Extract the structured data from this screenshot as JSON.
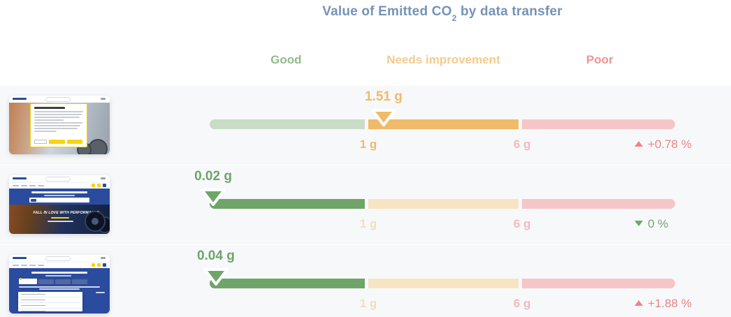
{
  "title": {
    "prefix": "Value of Emitted CO",
    "subscript": "2",
    "suffix": " by data transfer"
  },
  "zone_labels": {
    "good": "Good",
    "needs_improvement": "Needs improvement",
    "poor": "Poor"
  },
  "ticks": {
    "one": "1 g",
    "six": "6 g"
  },
  "thumbnails": {
    "page2_hero_text": "FALL IN LOVE WITH PERFORMANCE"
  },
  "colors": {
    "title_blue": "#7493b7",
    "good_green": "#6fa568",
    "good_green_faded": "#c9dcc6",
    "needs_orange": "#efbb68",
    "needs_orange_faded": "#f7e4c3",
    "poor_pink_faded": "#f5c6c8",
    "delta_red": "#ee8383",
    "delta_green": "#6fa868",
    "row_background": "#f7f8fa",
    "michelin_blue": "#2b4b9e",
    "michelin_yellow": "#f5d513"
  },
  "chart_data": {
    "type": "bar",
    "variant": "horizontal-bullet-gauge",
    "title": "Value of Emitted CO2 by data transfer",
    "unit": "g",
    "zones": [
      {
        "label": "Good",
        "min": 0,
        "max": 1
      },
      {
        "label": "Needs improvement",
        "min": 1,
        "max": 6
      },
      {
        "label": "Poor",
        "min": 6,
        "max": null
      }
    ],
    "tick_labels": [
      "1 g",
      "6 g"
    ],
    "legend_position": "top",
    "rows": [
      {
        "value": 1.51,
        "value_label": "1.51 g",
        "zone": "needs_improvement",
        "change_label": "+0.78 %",
        "change_direction": "up",
        "change_status": "worse"
      },
      {
        "value": 0.02,
        "value_label": "0.02 g",
        "zone": "good",
        "change_label": "0 %",
        "change_direction": "down",
        "change_status": "better"
      },
      {
        "value": 0.04,
        "value_label": "0.04 g",
        "zone": "good",
        "change_label": "+1.88 %",
        "change_direction": "up",
        "change_status": "worse"
      }
    ]
  }
}
